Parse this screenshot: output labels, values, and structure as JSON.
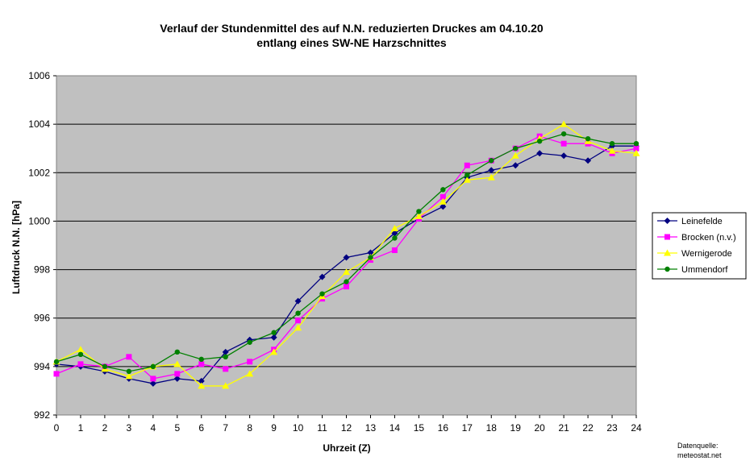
{
  "chart_data": {
    "type": "line",
    "title_line1": "Verlauf der Stundenmittel des auf N.N. reduzierten Druckes  am 04.10.20",
    "title_line2": "entlang eines SW-NE Harzschnittes",
    "xlabel": "Uhrzeit (Z)",
    "ylabel": "Luftdruck N.N. [hPa]",
    "x": [
      0,
      1,
      2,
      3,
      4,
      5,
      6,
      7,
      8,
      9,
      10,
      11,
      12,
      13,
      14,
      15,
      16,
      17,
      18,
      19,
      20,
      21,
      22,
      23,
      24
    ],
    "xlim": [
      0,
      24
    ],
    "ylim": [
      992,
      1006
    ],
    "yticks": [
      992,
      994,
      996,
      998,
      1000,
      1002,
      1004,
      1006
    ],
    "grid": "horizontal",
    "legend_position": "right",
    "series": [
      {
        "name": "Leinefelde",
        "color": "#000080",
        "marker": "diamond",
        "values": [
          994.1,
          994.0,
          993.8,
          993.5,
          993.3,
          993.5,
          993.4,
          994.6,
          995.1,
          995.2,
          996.7,
          997.7,
          998.5,
          998.7,
          999.5,
          1000.1,
          1000.6,
          1001.8,
          1002.1,
          1002.3,
          1002.8,
          1002.7,
          1002.5,
          1003.1,
          1003.1
        ]
      },
      {
        "name": "Brocken (n.v.)",
        "color": "#ff00ff",
        "marker": "square",
        "values": [
          993.7,
          994.1,
          994.0,
          994.4,
          993.5,
          993.7,
          994.1,
          993.9,
          994.2,
          994.7,
          995.9,
          996.8,
          997.3,
          998.4,
          998.8,
          1000.1,
          1001.0,
          1002.3,
          1002.5,
          1003.0,
          1003.5,
          1003.2,
          1003.2,
          1002.8,
          1003.0
        ]
      },
      {
        "name": "Wernigerode",
        "color": "#ffff00",
        "marker": "triangle",
        "values": [
          994.2,
          994.7,
          993.9,
          993.6,
          994.0,
          994.1,
          993.2,
          993.2,
          993.7,
          994.6,
          995.6,
          996.9,
          997.9,
          998.5,
          999.7,
          1000.2,
          1000.8,
          1001.7,
          1001.8,
          1002.7,
          1003.4,
          1004.0,
          1003.3,
          1002.9,
          1002.8
        ]
      },
      {
        "name": "Ummendorf",
        "color": "#008000",
        "marker": "circle",
        "values": [
          994.2,
          994.5,
          994.0,
          993.8,
          994.0,
          994.6,
          994.3,
          994.4,
          995.0,
          995.4,
          996.2,
          997.0,
          997.5,
          998.5,
          999.3,
          1000.4,
          1001.3,
          1001.9,
          1002.5,
          1003.0,
          1003.3,
          1003.6,
          1003.4,
          1003.2,
          1003.2
        ]
      }
    ],
    "source_line1": "Datenquelle:",
    "source_line2": "meteostat.net",
    "plot_background": "#c0c0c0"
  }
}
